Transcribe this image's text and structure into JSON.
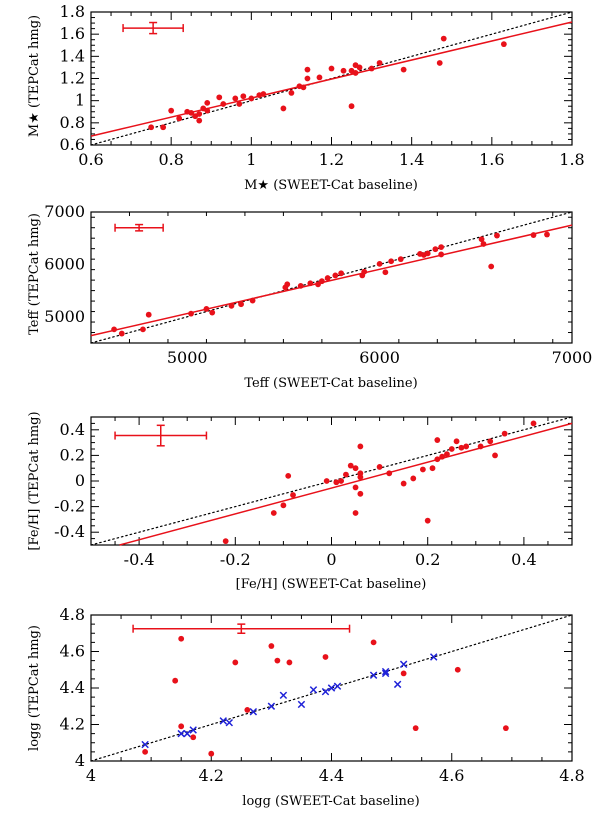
{
  "chart_data": [
    {
      "type": "scatter",
      "title": "",
      "xlabel": "M★ (SWEET-Cat baseline)",
      "ylabel": "M★ (TEPCat hmg)",
      "xlim": [
        0.6,
        1.8
      ],
      "ylim": [
        0.6,
        1.8
      ],
      "x_ticks": [
        "0.6",
        "0.8",
        "1",
        "1.2",
        "1.4",
        "1.6",
        "1.8"
      ],
      "y_ticks": [
        "0.6",
        "0.8",
        "1",
        "1.2",
        "1.4",
        "1.6",
        "1.8"
      ],
      "identity_line": true,
      "fit_line": [
        [
          0.6,
          0.68
        ],
        [
          1.8,
          1.71
        ]
      ],
      "error_bar": {
        "x": 0.755,
        "y": 1.655,
        "xerr": 0.075,
        "yerr": 0.05
      },
      "series": [
        {
          "name": "stars",
          "marker": "dot",
          "color": "#e8111a",
          "points": [
            [
              0.75,
              0.76
            ],
            [
              0.78,
              0.76
            ],
            [
              0.8,
              0.91
            ],
            [
              0.82,
              0.84
            ],
            [
              0.84,
              0.9
            ],
            [
              0.85,
              0.89
            ],
            [
              0.86,
              0.86
            ],
            [
              0.87,
              0.82
            ],
            [
              0.87,
              0.88
            ],
            [
              0.88,
              0.93
            ],
            [
              0.89,
              0.91
            ],
            [
              0.89,
              0.98
            ],
            [
              0.92,
              1.03
            ],
            [
              0.93,
              0.97
            ],
            [
              0.96,
              1.02
            ],
            [
              0.97,
              0.97
            ],
            [
              0.98,
              1.04
            ],
            [
              1.0,
              1.02
            ],
            [
              1.02,
              1.05
            ],
            [
              1.03,
              1.06
            ],
            [
              1.08,
              0.93
            ],
            [
              1.1,
              1.07
            ],
            [
              1.12,
              1.13
            ],
            [
              1.13,
              1.12
            ],
            [
              1.14,
              1.2
            ],
            [
              1.14,
              1.28
            ],
            [
              1.17,
              1.21
            ],
            [
              1.2,
              1.29
            ],
            [
              1.23,
              1.27
            ],
            [
              1.25,
              0.95
            ],
            [
              1.25,
              1.27
            ],
            [
              1.26,
              1.32
            ],
            [
              1.26,
              1.25
            ],
            [
              1.27,
              1.3
            ],
            [
              1.3,
              1.29
            ],
            [
              1.32,
              1.34
            ],
            [
              1.38,
              1.28
            ],
            [
              1.47,
              1.34
            ],
            [
              1.48,
              1.56
            ],
            [
              1.63,
              1.51
            ]
          ]
        }
      ]
    },
    {
      "type": "scatter",
      "title": "",
      "xlabel": "Teff (SWEET-Cat baseline)",
      "ylabel": "Teff (TEPCat hmg)",
      "xlim": [
        4500,
        7000
      ],
      "ylim": [
        4500,
        7000
      ],
      "x_ticks": [
        "5000",
        "6000",
        "7000"
      ],
      "y_ticks": [
        "5000",
        "6000",
        "7000"
      ],
      "identity_line": true,
      "fit_line": [
        [
          4500,
          4640
        ],
        [
          7000,
          6750
        ]
      ],
      "error_bar": {
        "x": 4750,
        "y": 6700,
        "xerr": 125,
        "yerr": 60
      },
      "series": [
        {
          "name": "stars",
          "marker": "dot",
          "color": "#e8111a",
          "points": [
            [
              4620,
              4760
            ],
            [
              4660,
              4680
            ],
            [
              4770,
              4760
            ],
            [
              4800,
              5040
            ],
            [
              5020,
              5060
            ],
            [
              5100,
              5150
            ],
            [
              5130,
              5080
            ],
            [
              5230,
              5210
            ],
            [
              5280,
              5240
            ],
            [
              5340,
              5310
            ],
            [
              5510,
              5560
            ],
            [
              5520,
              5620
            ],
            [
              5590,
              5590
            ],
            [
              5640,
              5640
            ],
            [
              5680,
              5620
            ],
            [
              5700,
              5680
            ],
            [
              5730,
              5740
            ],
            [
              5770,
              5790
            ],
            [
              5800,
              5830
            ],
            [
              5910,
              5790
            ],
            [
              5920,
              5860
            ],
            [
              6000,
              6010
            ],
            [
              6030,
              5850
            ],
            [
              6060,
              6060
            ],
            [
              6110,
              6100
            ],
            [
              6210,
              6200
            ],
            [
              6230,
              6180
            ],
            [
              6250,
              6210
            ],
            [
              6290,
              6290
            ],
            [
              6320,
              6330
            ],
            [
              6320,
              6190
            ],
            [
              6530,
              6480
            ],
            [
              6540,
              6390
            ],
            [
              6580,
              5960
            ],
            [
              6610,
              6550
            ],
            [
              6800,
              6560
            ],
            [
              6870,
              6570
            ]
          ]
        }
      ]
    },
    {
      "type": "scatter",
      "title": "",
      "xlabel": "[Fe/H]  (SWEET-Cat baseline)",
      "ylabel": "[Fe/H] (TEPCat hmg)",
      "xlim": [
        -0.5,
        0.5
      ],
      "ylim": [
        -0.5,
        0.5
      ],
      "x_ticks": [
        "-0.4",
        "-0.2",
        "0",
        "0.2",
        "0.4"
      ],
      "y_ticks": [
        "-0.4",
        "-0.2",
        "0",
        "0.2",
        "0.4"
      ],
      "identity_line": true,
      "fit_line": [
        [
          -0.5,
          -0.56
        ],
        [
          0.5,
          0.45
        ]
      ],
      "error_bar": {
        "x": -0.355,
        "y": 0.355,
        "xerr": 0.095,
        "yerr": 0.08
      },
      "series": [
        {
          "name": "stars",
          "marker": "dot",
          "color": "#e8111a",
          "points": [
            [
              -0.22,
              -0.47
            ],
            [
              -0.12,
              -0.25
            ],
            [
              -0.1,
              -0.19
            ],
            [
              -0.09,
              0.04
            ],
            [
              -0.08,
              -0.11
            ],
            [
              -0.01,
              0.0
            ],
            [
              0.01,
              -0.01
            ],
            [
              0.02,
              0.0
            ],
            [
              0.03,
              0.05
            ],
            [
              0.04,
              0.12
            ],
            [
              0.05,
              -0.05
            ],
            [
              0.05,
              0.1
            ],
            [
              0.06,
              0.03
            ],
            [
              0.06,
              0.06
            ],
            [
              0.06,
              0.27
            ],
            [
              0.06,
              -0.1
            ],
            [
              0.05,
              -0.25
            ],
            [
              0.1,
              0.11
            ],
            [
              0.12,
              0.06
            ],
            [
              0.15,
              -0.02
            ],
            [
              0.17,
              0.02
            ],
            [
              0.19,
              0.09
            ],
            [
              0.2,
              -0.31
            ],
            [
              0.21,
              0.1
            ],
            [
              0.22,
              0.17
            ],
            [
              0.22,
              0.32
            ],
            [
              0.23,
              0.19
            ],
            [
              0.24,
              0.21
            ],
            [
              0.25,
              0.25
            ],
            [
              0.26,
              0.31
            ],
            [
              0.27,
              0.26
            ],
            [
              0.28,
              0.27
            ],
            [
              0.31,
              0.27
            ],
            [
              0.33,
              0.31
            ],
            [
              0.34,
              0.2
            ],
            [
              0.36,
              0.37
            ],
            [
              0.42,
              0.45
            ]
          ]
        }
      ]
    },
    {
      "type": "scatter",
      "title": "",
      "xlabel": "logg (SWEET-Cat baseline)",
      "ylabel": "logg (TEPCat hmg)",
      "xlim": [
        4.0,
        4.8
      ],
      "ylim": [
        4.0,
        4.8
      ],
      "x_ticks": [
        "4",
        "4.2",
        "4.4",
        "4.6",
        "4.8"
      ],
      "y_ticks": [
        "4",
        "4.2",
        "4.4",
        "4.6",
        "4.8"
      ],
      "identity_line": true,
      "error_bar": {
        "x": 4.25,
        "y": 4.725,
        "xerr": 0.18,
        "yerr": 0.025
      },
      "series": [
        {
          "name": "red points",
          "marker": "dot",
          "color": "#e8111a",
          "points": [
            [
              4.09,
              4.05
            ],
            [
              4.14,
              4.44
            ],
            [
              4.15,
              4.19
            ],
            [
              4.15,
              4.67
            ],
            [
              4.17,
              4.13
            ],
            [
              4.2,
              4.04
            ],
            [
              4.24,
              4.54
            ],
            [
              4.26,
              4.28
            ],
            [
              4.3,
              4.63
            ],
            [
              4.31,
              4.55
            ],
            [
              4.33,
              4.54
            ],
            [
              4.39,
              4.57
            ],
            [
              4.47,
              4.65
            ],
            [
              4.52,
              4.48
            ],
            [
              4.54,
              4.18
            ],
            [
              4.61,
              4.5
            ],
            [
              4.69,
              4.18
            ]
          ]
        },
        {
          "name": "blue crosses",
          "marker": "x",
          "color": "#1f22d8",
          "points": [
            [
              4.09,
              4.09
            ],
            [
              4.15,
              4.15
            ],
            [
              4.16,
              4.15
            ],
            [
              4.17,
              4.17
            ],
            [
              4.22,
              4.22
            ],
            [
              4.23,
              4.21
            ],
            [
              4.27,
              4.27
            ],
            [
              4.3,
              4.3
            ],
            [
              4.32,
              4.36
            ],
            [
              4.35,
              4.31
            ],
            [
              4.37,
              4.39
            ],
            [
              4.39,
              4.38
            ],
            [
              4.4,
              4.4
            ],
            [
              4.41,
              4.41
            ],
            [
              4.47,
              4.47
            ],
            [
              4.49,
              4.48
            ],
            [
              4.49,
              4.49
            ],
            [
              4.51,
              4.42
            ],
            [
              4.52,
              4.53
            ],
            [
              4.57,
              4.57
            ]
          ]
        }
      ]
    }
  ]
}
